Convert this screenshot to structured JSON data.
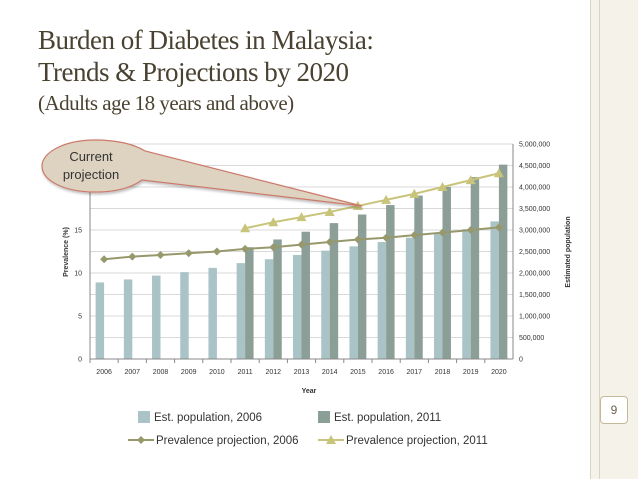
{
  "slide": {
    "title_line1": "Burden of Diabetes in Malaysia:",
    "title_line2": "Trends & Projections by 2020",
    "subtitle": "(Adults age 18 years and above)",
    "page_number": "9"
  },
  "callout": {
    "line1": "Current",
    "line2": "projection"
  },
  "colors": {
    "bar2006": "#a9c3c6",
    "bar2011": "#8c9f97",
    "line2006": "#97996c",
    "line2011": "#c8c47a",
    "title": "#4a4231"
  },
  "chart_data": {
    "type": "bar",
    "title": "",
    "xlabel": "Year",
    "ylabel_left": "Prevalence (%)",
    "ylabel_right": "Estimated population",
    "categories": [
      "2006",
      "2007",
      "2008",
      "2009",
      "2010",
      "2011",
      "2012",
      "2013",
      "2014",
      "2015",
      "2016",
      "2017",
      "2018",
      "2019",
      "2020"
    ],
    "ylim_left": [
      0,
      25
    ],
    "yticks_left": [
      0,
      5,
      10,
      15
    ],
    "ylim_right": [
      0,
      5000000
    ],
    "yticks_right": [
      0,
      500000,
      1000000,
      1500000,
      2000000,
      2500000,
      3000000,
      3500000,
      4000000,
      4500000,
      5000000
    ],
    "ytick_labels_right": [
      "0",
      "500,000",
      "1,000,000",
      "1,500,000",
      "2,000,000",
      "2,500,000",
      "3,000,000",
      "3,500,000",
      "4,000,000",
      "4,500,000",
      "5,000,000"
    ],
    "legend_position": "bottom",
    "series": [
      {
        "name": "Est. population, 2006",
        "kind": "bar",
        "axis": "right",
        "values": [
          1780000,
          1850000,
          1940000,
          2020000,
          2120000,
          2230000,
          2320000,
          2420000,
          2520000,
          2620000,
          2720000,
          2820000,
          2920000,
          3020000,
          3200000
        ]
      },
      {
        "name": "Est. population, 2011",
        "kind": "bar",
        "axis": "right",
        "values": [
          null,
          null,
          null,
          null,
          null,
          2600000,
          2780000,
          2960000,
          3160000,
          3360000,
          3580000,
          3800000,
          4000000,
          4230000,
          4520000
        ]
      },
      {
        "name": "Prevalence projection, 2006",
        "kind": "line",
        "axis": "left",
        "marker": "diamond",
        "values": [
          11.6,
          11.9,
          12.1,
          12.3,
          12.5,
          12.8,
          13.0,
          13.3,
          13.6,
          13.9,
          14.1,
          14.4,
          14.7,
          15.0,
          15.3
        ]
      },
      {
        "name": "Prevalence projection, 2011",
        "kind": "line",
        "axis": "left",
        "marker": "triangle",
        "values": [
          null,
          null,
          null,
          null,
          null,
          15.2,
          15.9,
          16.5,
          17.1,
          17.8,
          18.5,
          19.2,
          20.0,
          20.8,
          21.6
        ]
      }
    ]
  }
}
